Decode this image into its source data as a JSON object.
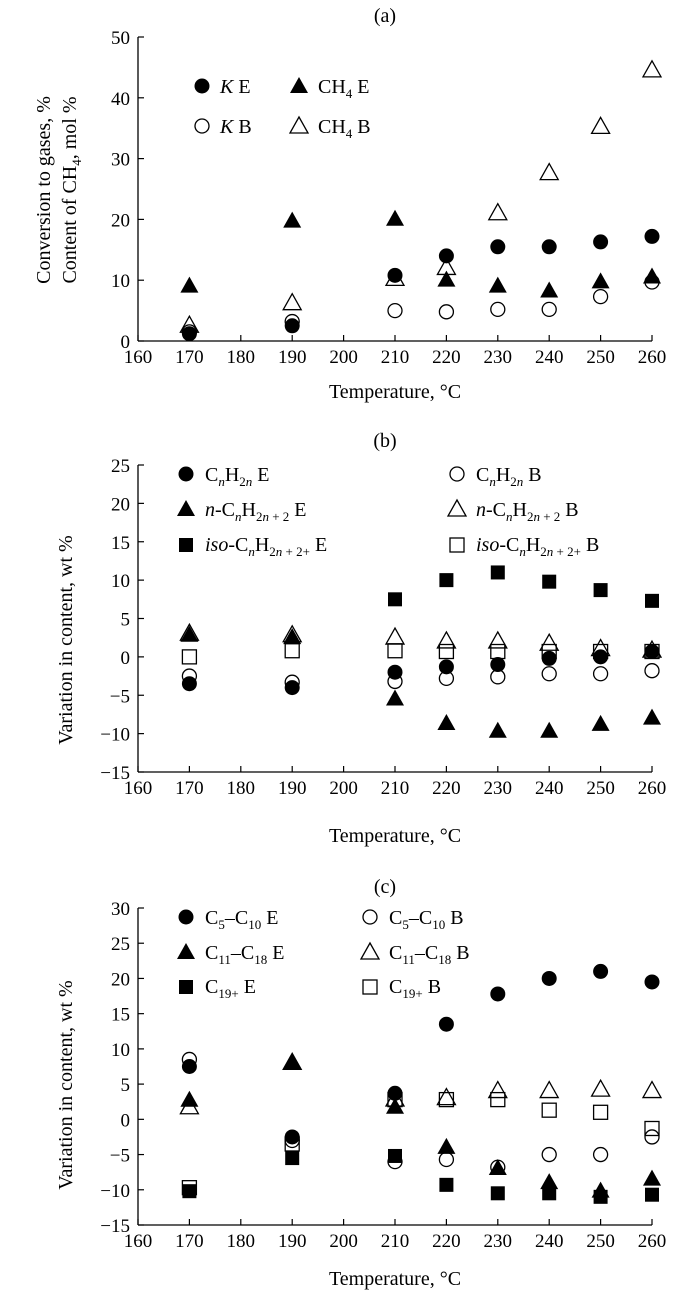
{
  "chart_data": [
    {
      "panel_label": "(a)",
      "type": "scatter",
      "xlabel": "Temperature, °C",
      "ylabel_line1": "Conversion to gases, %",
      "ylabel_line2": "Content of CH4, mol %",
      "xlim": [
        160,
        260
      ],
      "ylim": [
        0,
        50
      ],
      "xticks": [
        160,
        170,
        180,
        190,
        200,
        210,
        220,
        230,
        240,
        250,
        260
      ],
      "yticks": [
        0,
        10,
        20,
        30,
        40,
        50
      ],
      "grid": false,
      "legend_position": "top-left",
      "series": [
        {
          "name": "K E",
          "marker": "circle",
          "filled": true,
          "x": [
            170,
            190,
            210,
            220,
            230,
            240,
            250,
            260
          ],
          "y": [
            1.2,
            2.5,
            10.8,
            14.0,
            15.5,
            15.5,
            16.3,
            17.2
          ]
        },
        {
          "name": "CH4 E",
          "marker": "triangle",
          "filled": true,
          "x": [
            170,
            190,
            210,
            220,
            230,
            240,
            250,
            260
          ],
          "y": [
            9.0,
            19.7,
            20.0,
            10.0,
            9.0,
            8.2,
            9.7,
            10.5
          ]
        },
        {
          "name": "K B",
          "marker": "circle",
          "filled": false,
          "x": [
            170,
            190,
            210,
            220,
            230,
            240,
            250,
            260
          ],
          "y": [
            1.5,
            3.2,
            5.0,
            4.8,
            5.2,
            5.2,
            7.3,
            9.7
          ]
        },
        {
          "name": "CH4 B",
          "marker": "triangle",
          "filled": false,
          "x": [
            170,
            190,
            210,
            220,
            230,
            240,
            250,
            260
          ],
          "y": [
            2.5,
            6.2,
            10.2,
            12.0,
            21.0,
            27.6,
            35.2,
            44.5
          ]
        }
      ]
    },
    {
      "panel_label": "(b)",
      "type": "scatter",
      "xlabel": "Temperature, °C",
      "ylabel": "Variation in content, wt %",
      "xlim": [
        160,
        260
      ],
      "ylim": [
        -15,
        25
      ],
      "xticks": [
        160,
        170,
        180,
        190,
        200,
        210,
        220,
        230,
        240,
        250,
        260
      ],
      "yticks": [
        -15,
        -10,
        -5,
        0,
        5,
        10,
        15,
        20,
        25
      ],
      "grid": false,
      "legend_position": "top",
      "series": [
        {
          "name": "CnH2n E",
          "marker": "circle",
          "filled": true,
          "x": [
            170,
            190,
            210,
            220,
            230,
            240,
            250,
            260
          ],
          "y": [
            -3.5,
            -4.0,
            -2.0,
            -1.3,
            -1.0,
            -0.2,
            0.0,
            0.7
          ]
        },
        {
          "name": "CnH2n B",
          "marker": "circle",
          "filled": false,
          "x": [
            170,
            190,
            210,
            220,
            230,
            240,
            250,
            260
          ],
          "y": [
            -2.5,
            -3.3,
            -3.2,
            -2.8,
            -2.6,
            -2.2,
            -2.2,
            -1.8
          ]
        },
        {
          "name": "n-CnH2n + 2 E",
          "marker": "triangle",
          "filled": true,
          "x": [
            170,
            190,
            210,
            220,
            230,
            240,
            250,
            260
          ],
          "y": [
            2.8,
            2.5,
            -5.5,
            -8.7,
            -9.7,
            -9.7,
            -8.8,
            -8.0
          ]
        },
        {
          "name": "n-CnH2n + 2 B",
          "marker": "triangle",
          "filled": false,
          "x": [
            170,
            190,
            210,
            220,
            230,
            240,
            250,
            260
          ],
          "y": [
            3.0,
            2.8,
            2.5,
            2.0,
            2.0,
            1.7,
            1.0,
            0.8
          ]
        },
        {
          "name": "iso-CnH2n + 2+ E",
          "marker": "square",
          "filled": true,
          "x": [
            210,
            220,
            230,
            240,
            250,
            260
          ],
          "y": [
            7.5,
            10.0,
            11.0,
            9.8,
            8.7,
            7.3
          ]
        },
        {
          "name": "iso-CnH2n + 2+ B",
          "marker": "square",
          "filled": false,
          "x": [
            170,
            190,
            210,
            220,
            230,
            240,
            250,
            260
          ],
          "y": [
            0.0,
            0.8,
            0.8,
            0.7,
            0.7,
            0.7,
            0.7,
            0.7
          ]
        }
      ]
    },
    {
      "panel_label": "(c)",
      "type": "scatter",
      "xlabel": "Temperature, °C",
      "ylabel": "Variation in content, wt %",
      "xlim": [
        160,
        260
      ],
      "ylim": [
        -15,
        30
      ],
      "xticks": [
        160,
        170,
        180,
        190,
        200,
        210,
        220,
        230,
        240,
        250,
        260
      ],
      "yticks": [
        -15,
        -10,
        -5,
        0,
        5,
        10,
        15,
        20,
        25,
        30
      ],
      "grid": false,
      "legend_position": "top",
      "series": [
        {
          "name": "C5–C10 E",
          "marker": "circle",
          "filled": true,
          "x": [
            170,
            190,
            210,
            220,
            230,
            240,
            250,
            260
          ],
          "y": [
            7.5,
            -2.5,
            3.7,
            13.5,
            17.8,
            20.0,
            21.0,
            19.5
          ]
        },
        {
          "name": "C5–C10 B",
          "marker": "circle",
          "filled": false,
          "x": [
            170,
            190,
            210,
            220,
            230,
            240,
            250,
            260
          ],
          "y": [
            8.5,
            -3.0,
            -6.0,
            -5.7,
            -6.8,
            -5.0,
            -5.0,
            -2.5
          ]
        },
        {
          "name": "C11–C18 E",
          "marker": "triangle",
          "filled": true,
          "x": [
            170,
            190,
            210,
            220,
            230,
            240,
            250,
            260
          ],
          "y": [
            2.7,
            8.0,
            1.7,
            -4.0,
            -7.0,
            -9.0,
            -10.2,
            -8.5
          ]
        },
        {
          "name": "C11–C18 B",
          "marker": "triangle",
          "filled": false,
          "x": [
            170,
            190,
            210,
            220,
            230,
            240,
            250,
            260
          ],
          "y": [
            1.7,
            8.0,
            2.8,
            3.0,
            4.0,
            4.0,
            4.2,
            4.0
          ]
        },
        {
          "name": "C19+ E",
          "marker": "square",
          "filled": true,
          "x": [
            170,
            190,
            210,
            220,
            230,
            240,
            250,
            260
          ],
          "y": [
            -10.2,
            -5.5,
            -5.2,
            -9.3,
            -10.5,
            -10.5,
            -11.0,
            -10.7
          ]
        },
        {
          "name": "C19+ B",
          "marker": "square",
          "filled": false,
          "x": [
            170,
            190,
            210,
            220,
            230,
            240,
            250,
            260
          ],
          "y": [
            -9.7,
            -3.5,
            2.8,
            2.8,
            2.8,
            1.3,
            1.0,
            -1.3
          ]
        }
      ]
    }
  ]
}
